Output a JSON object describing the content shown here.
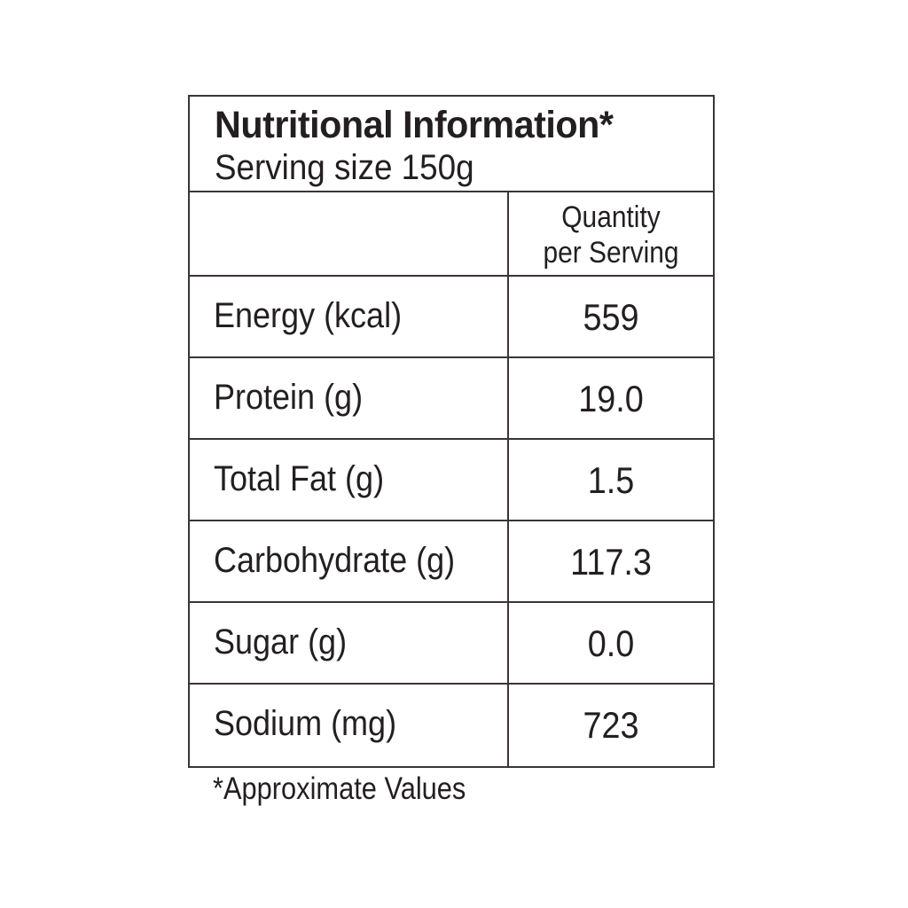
{
  "panel": {
    "title": "Nutritional Information*",
    "serving": "Serving size 150g"
  },
  "table": {
    "quantity_header_line1": "Quantity",
    "quantity_header_line2": "per Serving",
    "rows": [
      {
        "label": "Energy (kcal)",
        "value": "559"
      },
      {
        "label": "Protein (g)",
        "value": "19.0"
      },
      {
        "label": "Total Fat (g)",
        "value": "1.5"
      },
      {
        "label": "Carbohydrate (g)",
        "value": "117.3"
      },
      {
        "label": "Sugar (g)",
        "value": "0.0"
      },
      {
        "label": "Sodium (mg)",
        "value": "723"
      }
    ]
  },
  "footnote": "*Approximate Values"
}
